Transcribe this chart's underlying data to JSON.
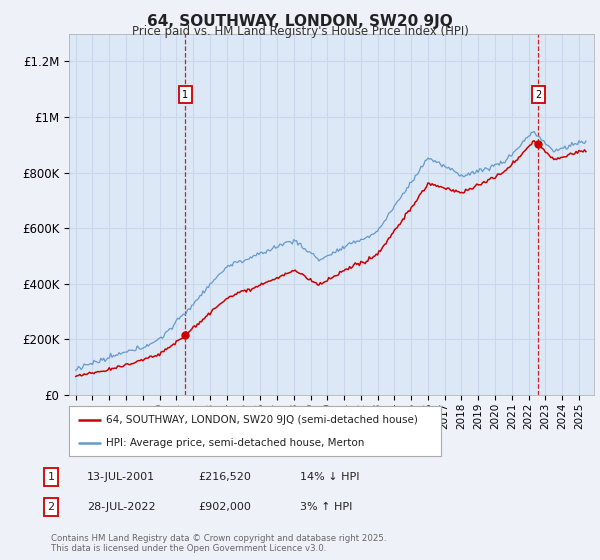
{
  "title": "64, SOUTHWAY, LONDON, SW20 9JQ",
  "subtitle": "Price paid vs. HM Land Registry's House Price Index (HPI)",
  "background_color": "#eef2f8",
  "plot_bg_color": "#dce8f5",
  "grid_color": "#c8d8ea",
  "sale1_x": 2001.54,
  "sale2_x": 2022.57,
  "sale1_price": 216520,
  "sale2_price": 902000,
  "legend_label_red": "64, SOUTHWAY, LONDON, SW20 9JQ (semi-detached house)",
  "legend_label_blue": "HPI: Average price, semi-detached house, Merton",
  "footer": "Contains HM Land Registry data © Crown copyright and database right 2025.\nThis data is licensed under the Open Government Licence v3.0.",
  "table_rows": [
    {
      "num": "1",
      "date": "13-JUL-2001",
      "price": "£216,520",
      "hpi": "14% ↓ HPI"
    },
    {
      "num": "2",
      "date": "28-JUL-2022",
      "price": "£902,000",
      "hpi": "3% ↑ HPI"
    }
  ],
  "ylim": [
    0,
    1300000
  ],
  "yticks": [
    0,
    200000,
    400000,
    600000,
    800000,
    1000000,
    1200000
  ],
  "ytick_labels": [
    "£0",
    "£200K",
    "£400K",
    "£600K",
    "£800K",
    "£1M",
    "£1.2M"
  ],
  "red_color": "#cc0000",
  "blue_color": "#6699cc",
  "marker_color": "#cc0000"
}
